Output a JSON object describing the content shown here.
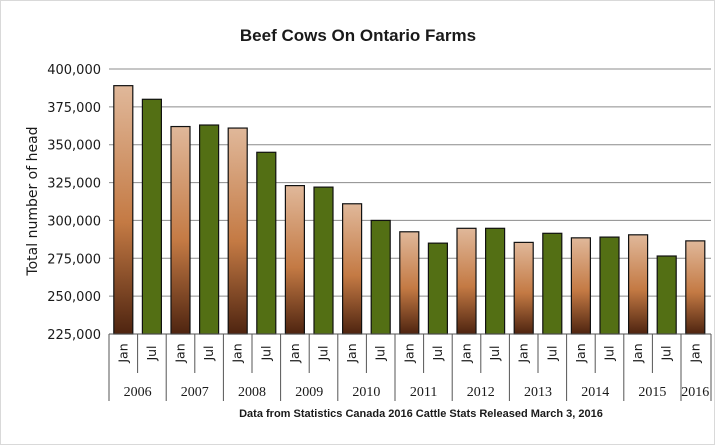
{
  "chart_data": {
    "type": "bar",
    "title": "Beef Cows On Ontario Farms",
    "ylabel": "Total number of head",
    "source": "Data from Statistics Canada 2016 Cattle Stats  Released March 3, 2016",
    "ylim": [
      225000,
      400000
    ],
    "yticks": [
      225000,
      250000,
      275000,
      300000,
      325000,
      350000,
      375000,
      400000
    ],
    "ytick_labels": [
      "225,000",
      "250,000",
      "275,000",
      "300,000",
      "325,000",
      "350,000",
      "375,000",
      "400,000"
    ],
    "grid": true,
    "legend": "none",
    "colors": {
      "jan_light": "#e0b89a",
      "jan_mid": "#c47a44",
      "jan_dark": "#4e2410",
      "jul": "#536f14",
      "gridline": "#8c8c8c",
      "bar_outline": "#111111"
    },
    "categories": [
      {
        "month": "Jan",
        "year": "2006",
        "value": 389000
      },
      {
        "month": "Jul",
        "year": "2006",
        "value": 380000
      },
      {
        "month": "Jan",
        "year": "2007",
        "value": 362000
      },
      {
        "month": "Jul",
        "year": "2007",
        "value": 363000
      },
      {
        "month": "Jan",
        "year": "2008",
        "value": 361000
      },
      {
        "month": "Jul",
        "year": "2008",
        "value": 345000
      },
      {
        "month": "Jan",
        "year": "2009",
        "value": 323000
      },
      {
        "month": "Jul",
        "year": "2009",
        "value": 322000
      },
      {
        "month": "Jan",
        "year": "2010",
        "value": 311000
      },
      {
        "month": "Jul",
        "year": "2010",
        "value": 300000
      },
      {
        "month": "Jan",
        "year": "2011",
        "value": 292500
      },
      {
        "month": "Jul",
        "year": "2011",
        "value": 285000
      },
      {
        "month": "Jan",
        "year": "2012",
        "value": 294800
      },
      {
        "month": "Jul",
        "year": "2012",
        "value": 294800
      },
      {
        "month": "Jan",
        "year": "2013",
        "value": 285500
      },
      {
        "month": "Jul",
        "year": "2013",
        "value": 291500
      },
      {
        "month": "Jan",
        "year": "2014",
        "value": 288500
      },
      {
        "month": "Jul",
        "year": "2014",
        "value": 289000
      },
      {
        "month": "Jan",
        "year": "2015",
        "value": 290500
      },
      {
        "month": "Jul",
        "year": "2015",
        "value": 276500
      },
      {
        "month": "Jan",
        "year": "2016",
        "value": 286500
      }
    ],
    "years": [
      "2006",
      "2007",
      "2008",
      "2009",
      "2010",
      "2011",
      "2012",
      "2013",
      "2014",
      "2015",
      "2016"
    ]
  }
}
